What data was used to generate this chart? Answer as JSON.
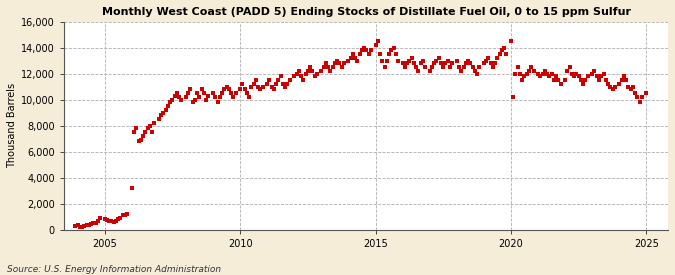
{
  "title": "Monthly West Coast (PADD 5) Ending Stocks of Distillate Fuel Oil, 0 to 15 ppm Sulfur",
  "ylabel": "Thousand Barrels",
  "source": "Source: U.S. Energy Information Administration",
  "background_color": "#f5edd8",
  "plot_bg_color": "#ffffff",
  "marker_color": "#cc0000",
  "marker_size": 5,
  "ylim": [
    0,
    16000
  ],
  "yticks": [
    0,
    2000,
    4000,
    6000,
    8000,
    10000,
    12000,
    14000,
    16000
  ],
  "xlim_start": 2003.5,
  "xlim_end": 2025.8,
  "xticks": [
    2005,
    2010,
    2015,
    2020,
    2025
  ],
  "data": {
    "dates": [
      2003.917,
      2004.0,
      2004.083,
      2004.167,
      2004.25,
      2004.333,
      2004.417,
      2004.5,
      2004.583,
      2004.667,
      2004.75,
      2004.833,
      2005.0,
      2005.083,
      2005.167,
      2005.25,
      2005.333,
      2005.417,
      2005.5,
      2005.583,
      2005.667,
      2005.75,
      2005.833,
      2006.0,
      2006.083,
      2006.167,
      2006.25,
      2006.333,
      2006.417,
      2006.5,
      2006.583,
      2006.667,
      2006.75,
      2006.833,
      2007.0,
      2007.083,
      2007.167,
      2007.25,
      2007.333,
      2007.417,
      2007.5,
      2007.583,
      2007.667,
      2007.75,
      2007.833,
      2008.0,
      2008.083,
      2008.167,
      2008.25,
      2008.333,
      2008.417,
      2008.5,
      2008.583,
      2008.667,
      2008.75,
      2008.833,
      2009.0,
      2009.083,
      2009.167,
      2009.25,
      2009.333,
      2009.417,
      2009.5,
      2009.583,
      2009.667,
      2009.75,
      2009.833,
      2010.0,
      2010.083,
      2010.167,
      2010.25,
      2010.333,
      2010.417,
      2010.5,
      2010.583,
      2010.667,
      2010.75,
      2010.833,
      2011.0,
      2011.083,
      2011.167,
      2011.25,
      2011.333,
      2011.417,
      2011.5,
      2011.583,
      2011.667,
      2011.75,
      2011.833,
      2012.0,
      2012.083,
      2012.167,
      2012.25,
      2012.333,
      2012.417,
      2012.5,
      2012.583,
      2012.667,
      2012.75,
      2012.833,
      2013.0,
      2013.083,
      2013.167,
      2013.25,
      2013.333,
      2013.417,
      2013.5,
      2013.583,
      2013.667,
      2013.75,
      2013.833,
      2014.0,
      2014.083,
      2014.167,
      2014.25,
      2014.333,
      2014.417,
      2014.5,
      2014.583,
      2014.667,
      2014.75,
      2014.833,
      2015.0,
      2015.083,
      2015.167,
      2015.25,
      2015.333,
      2015.417,
      2015.5,
      2015.583,
      2015.667,
      2015.75,
      2015.833,
      2016.0,
      2016.083,
      2016.167,
      2016.25,
      2016.333,
      2016.417,
      2016.5,
      2016.583,
      2016.667,
      2016.75,
      2016.833,
      2017.0,
      2017.083,
      2017.167,
      2017.25,
      2017.333,
      2017.417,
      2017.5,
      2017.583,
      2017.667,
      2017.75,
      2017.833,
      2018.0,
      2018.083,
      2018.167,
      2018.25,
      2018.333,
      2018.417,
      2018.5,
      2018.583,
      2018.667,
      2018.75,
      2018.833,
      2019.0,
      2019.083,
      2019.167,
      2019.25,
      2019.333,
      2019.417,
      2019.5,
      2019.583,
      2019.667,
      2019.75,
      2019.833,
      2020.0,
      2020.083,
      2020.167,
      2020.25,
      2020.333,
      2020.417,
      2020.5,
      2020.583,
      2020.667,
      2020.75,
      2020.833,
      2021.0,
      2021.083,
      2021.167,
      2021.25,
      2021.333,
      2021.417,
      2021.5,
      2021.583,
      2021.667,
      2021.75,
      2021.833,
      2022.0,
      2022.083,
      2022.167,
      2022.25,
      2022.333,
      2022.417,
      2022.5,
      2022.583,
      2022.667,
      2022.75,
      2022.833,
      2023.0,
      2023.083,
      2023.167,
      2023.25,
      2023.333,
      2023.417,
      2023.5,
      2023.583,
      2023.667,
      2023.75,
      2023.833,
      2024.0,
      2024.083,
      2024.167,
      2024.25,
      2024.333,
      2024.417,
      2024.5,
      2024.583,
      2024.667,
      2024.75,
      2024.833,
      2025.0
    ],
    "values": [
      300,
      350,
      200,
      250,
      300,
      350,
      400,
      450,
      500,
      550,
      700,
      900,
      800,
      750,
      700,
      650,
      600,
      700,
      800,
      900,
      1100,
      1100,
      1200,
      3200,
      7500,
      7800,
      6800,
      6900,
      7200,
      7500,
      7800,
      8000,
      7500,
      8200,
      8500,
      8800,
      9000,
      9200,
      9500,
      9800,
      10000,
      10300,
      10500,
      10200,
      10000,
      10200,
      10500,
      10800,
      9800,
      10000,
      10500,
      10200,
      10800,
      10500,
      10000,
      10300,
      10500,
      10200,
      9800,
      10200,
      10500,
      10800,
      11000,
      10800,
      10500,
      10200,
      10500,
      10800,
      11200,
      10800,
      10500,
      10200,
      11000,
      11200,
      11500,
      11000,
      10800,
      11000,
      11200,
      11500,
      11000,
      10800,
      11200,
      11500,
      11800,
      11200,
      11000,
      11200,
      11500,
      11800,
      12000,
      12200,
      11800,
      11500,
      12000,
      12200,
      12500,
      12200,
      11800,
      12000,
      12200,
      12500,
      12800,
      12500,
      12200,
      12500,
      12800,
      13000,
      12800,
      12500,
      12800,
      13000,
      13200,
      13500,
      13200,
      13000,
      13500,
      13800,
      14000,
      13800,
      13500,
      13800,
      14200,
      14500,
      13500,
      13000,
      12500,
      13000,
      13500,
      13800,
      14000,
      13500,
      13000,
      12800,
      12500,
      12800,
      13000,
      13200,
      12800,
      12500,
      12200,
      12800,
      13000,
      12500,
      12200,
      12500,
      12800,
      13000,
      13200,
      12800,
      12500,
      12800,
      13000,
      12500,
      12800,
      13000,
      12500,
      12200,
      12500,
      12800,
      13000,
      12800,
      12500,
      12200,
      12000,
      12500,
      12800,
      13000,
      13200,
      12800,
      12500,
      12800,
      13200,
      13500,
      13800,
      14000,
      13500,
      14500,
      10200,
      12000,
      12500,
      12000,
      11500,
      11800,
      12000,
      12200,
      12500,
      12200,
      12000,
      11800,
      12000,
      12200,
      12000,
      11800,
      12000,
      11500,
      11800,
      11500,
      11200,
      11500,
      12200,
      12500,
      12000,
      11800,
      12000,
      11800,
      11500,
      11200,
      11500,
      11800,
      12000,
      12200,
      11800,
      11500,
      11800,
      12000,
      11500,
      11200,
      11000,
      10800,
      11000,
      11200,
      11500,
      11800,
      11500,
      11000,
      10800,
      11000,
      10500,
      10200,
      9800,
      10200,
      10500
    ]
  }
}
